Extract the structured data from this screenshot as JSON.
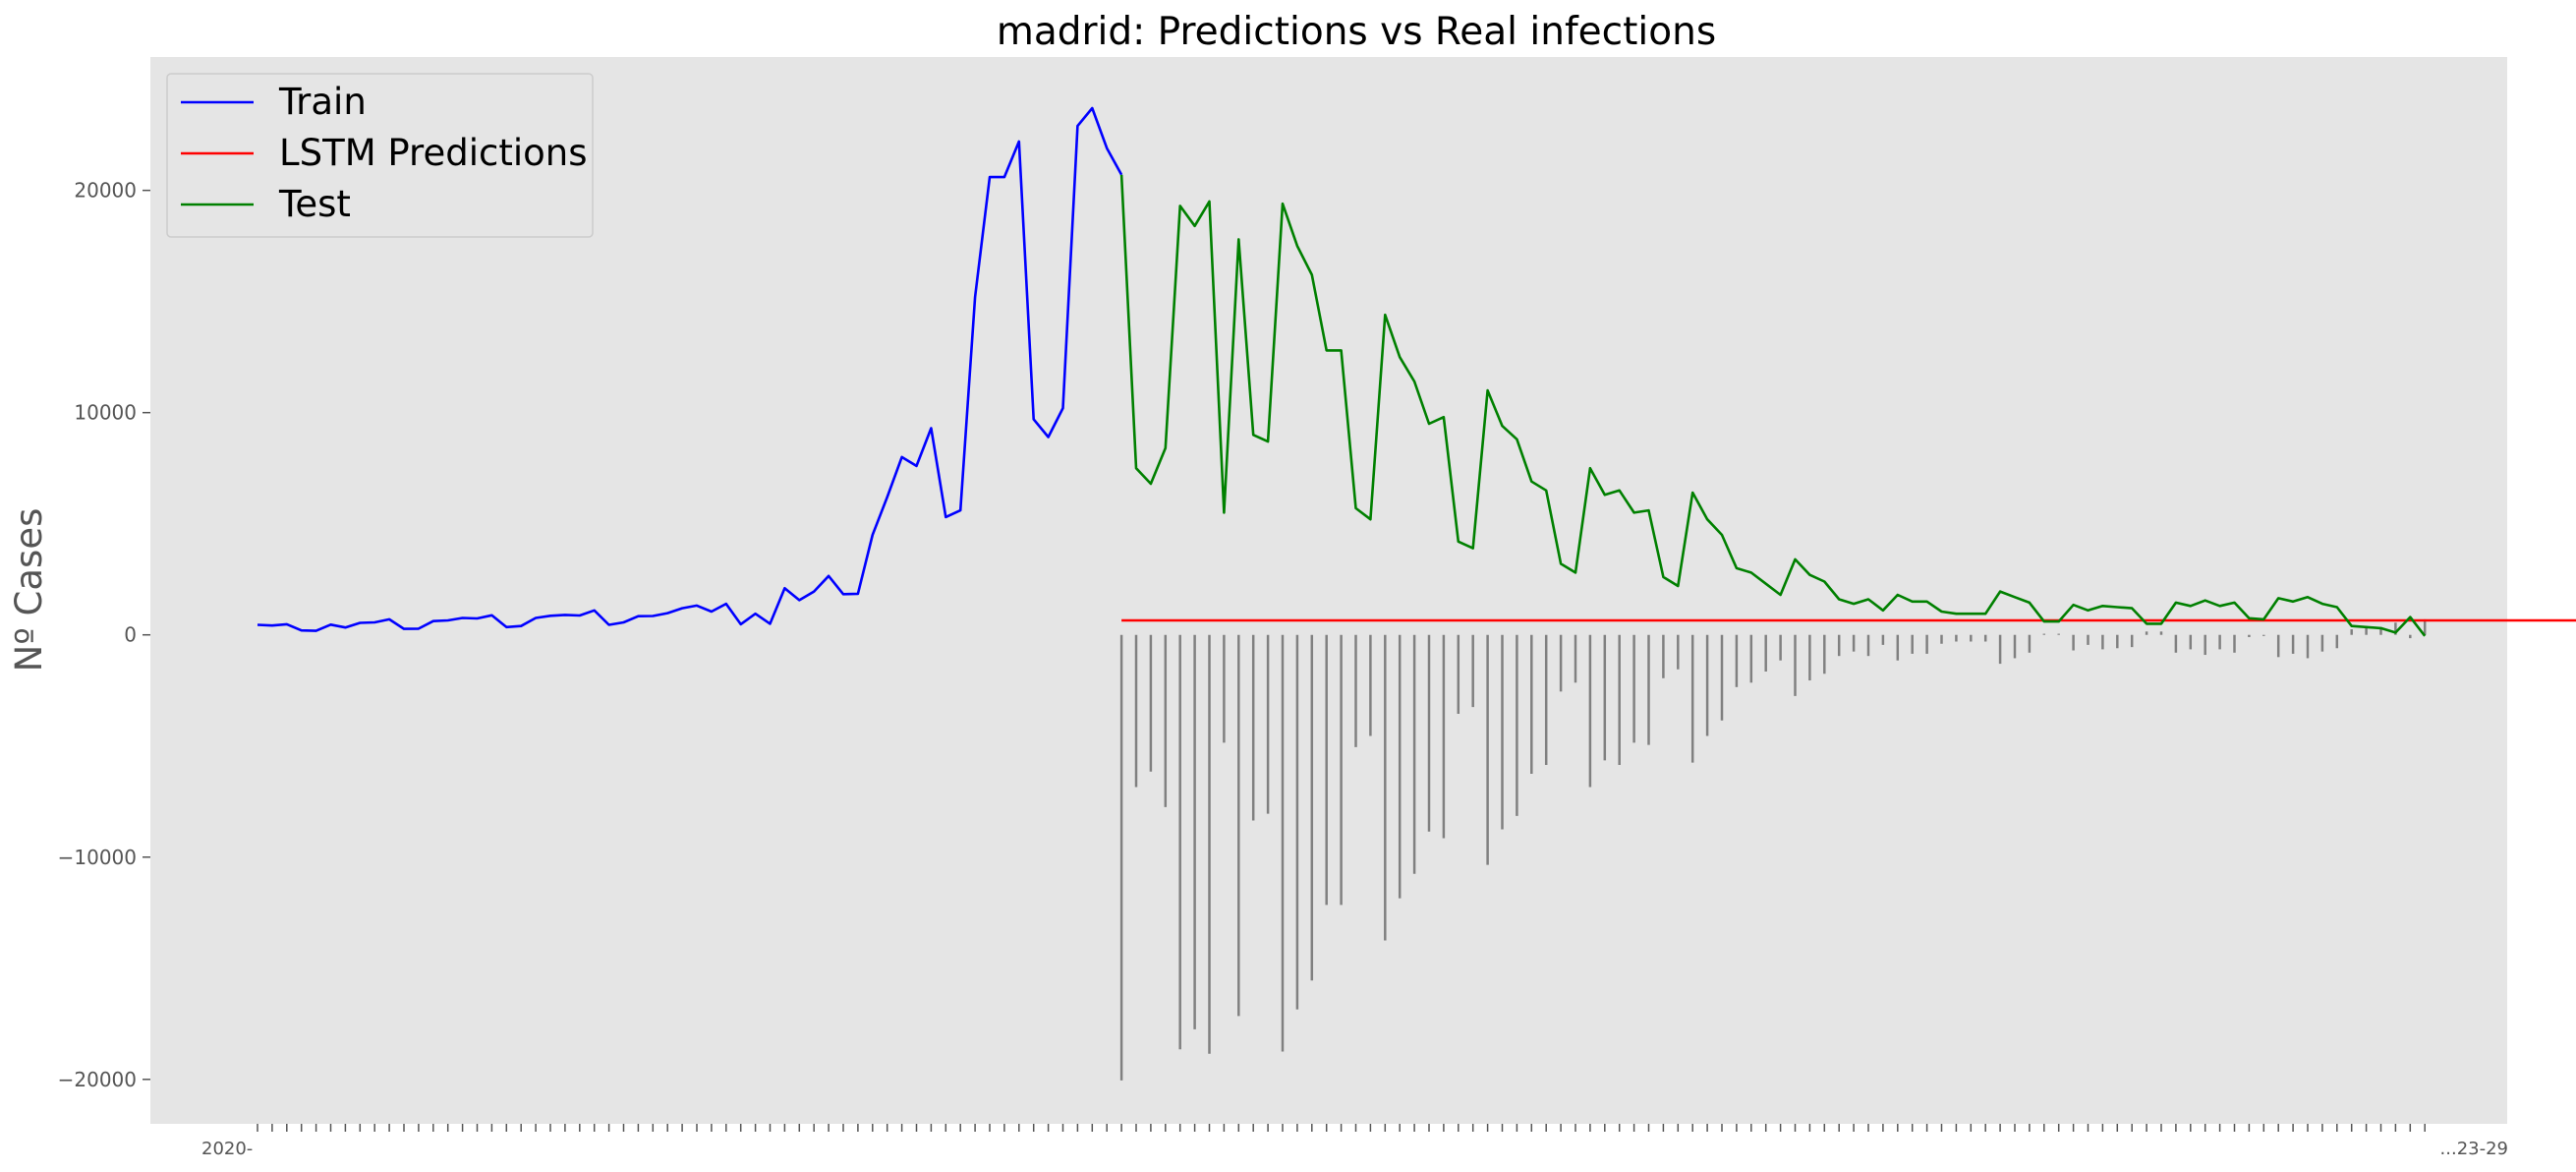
{
  "chart_data": {
    "type": "line",
    "title": "madrid: Predictions vs Real infections",
    "xlabel": "",
    "ylabel": "Nº Cases",
    "ylim": [
      -22000,
      26000
    ],
    "yticks": [
      -20000,
      -10000,
      0,
      10000,
      20000
    ],
    "grid": false,
    "legend_position": "top-left",
    "background": "#e5e5e5",
    "x_tick_labels": {
      "first": "2020-",
      "last": "...23-29"
    },
    "series": [
      {
        "name": "Train",
        "color": "#0000ff",
        "x_start": 0,
        "values": [
          450,
          420,
          480,
          200,
          180,
          460,
          330,
          540,
          560,
          700,
          270,
          280,
          620,
          650,
          760,
          740,
          880,
          350,
          400,
          760,
          860,
          900,
          870,
          1100,
          450,
          560,
          840,
          850,
          980,
          1200,
          1320,
          1050,
          1400,
          480,
          950,
          500,
          2100,
          1560,
          1950,
          2650,
          1830,
          1850,
          4500,
          6200,
          8000,
          7600,
          9300,
          5300,
          5600,
          15200,
          20600,
          20600,
          22200,
          9700,
          8900,
          10200,
          22900,
          23700,
          21900,
          20700
        ]
      },
      {
        "name": "LSTM Predictions",
        "color": "#ff0000",
        "x_start": 59,
        "values": [
          650,
          650,
          650,
          650,
          650,
          650,
          650,
          650,
          650,
          650,
          650,
          650,
          650,
          650,
          650,
          650,
          650,
          650,
          650,
          650,
          650,
          650,
          650,
          650,
          650,
          650,
          650,
          650,
          650,
          650,
          650,
          650,
          650,
          650,
          650,
          650,
          650,
          650,
          650,
          650,
          650,
          650,
          650,
          650,
          650,
          650,
          650,
          650,
          650,
          650,
          650,
          650,
          650,
          650,
          650,
          650,
          650,
          650,
          650,
          650,
          650,
          650,
          650,
          650,
          650,
          650,
          650,
          650,
          650,
          650,
          650,
          650,
          650,
          650,
          650,
          650,
          650,
          650,
          650,
          650,
          650,
          650,
          650,
          650,
          650,
          650,
          650,
          650,
          650,
          650,
          650,
          650,
          650,
          650,
          650,
          650,
          650,
          650,
          650,
          650,
          650,
          650,
          650,
          650,
          650,
          650,
          650,
          650,
          650,
          650,
          650,
          650,
          650,
          650,
          650,
          650,
          650,
          650,
          650,
          650,
          650,
          650,
          650,
          650,
          650,
          650,
          650,
          650,
          650,
          650,
          650,
          650,
          650,
          650,
          650,
          650,
          650,
          650,
          650,
          650,
          650,
          650,
          650,
          650,
          650,
          650,
          650,
          650,
          650
        ]
      },
      {
        "name": "Test",
        "color": "#008000",
        "x_start": 59,
        "values": [
          20700,
          7500,
          6800,
          8400,
          19300,
          18400,
          19500,
          5500,
          17800,
          9000,
          8700,
          19400,
          17500,
          16200,
          12800,
          12800,
          5700,
          5200,
          14400,
          12500,
          11400,
          9500,
          9800,
          4200,
          3900,
          11000,
          9400,
          8800,
          6900,
          6500,
          3200,
          2800,
          7500,
          6300,
          6500,
          5500,
          5600,
          2600,
          2200,
          6400,
          5200,
          4500,
          3000,
          2800,
          2300,
          1800,
          3400,
          2700,
          2400,
          1600,
          1400,
          1600,
          1100,
          1800,
          1500,
          1500,
          1050,
          950,
          950,
          950,
          1950,
          1700,
          1450,
          600,
          600,
          1350,
          1100,
          1300,
          1250,
          1200,
          500,
          500,
          1450,
          1300,
          1550,
          1300,
          1450,
          750,
          700,
          1650,
          1500,
          1700,
          1400,
          1250,
          400,
          350,
          300,
          100,
          800,
          -50
        ]
      },
      {
        "name": "",
        "type": "stem",
        "color": "#808080",
        "x_start": 59,
        "values": [
          -20050,
          -6850,
          -6150,
          -7750,
          -18650,
          -17750,
          -18850,
          -4850,
          -17150,
          -8350,
          -8050,
          -18750,
          -16850,
          -15550,
          -12150,
          -12150,
          -5050,
          -4550,
          -13750,
          -11850,
          -10750,
          -8850,
          -9150,
          -3550,
          -3250,
          -10350,
          -8750,
          -8150,
          -6250,
          -5850,
          -2550,
          -2150,
          -6850,
          -5650,
          -5850,
          -4850,
          -4950,
          -1950,
          -1550,
          -5750,
          -4550,
          -3850,
          -2350,
          -2150,
          -1650,
          -1150,
          -2750,
          -2050,
          -1750,
          -950,
          -750,
          -950,
          -450,
          -1150,
          -850,
          -850,
          -400,
          -300,
          -300,
          -300,
          -1300,
          -1050,
          -800,
          50,
          50,
          -700,
          -450,
          -650,
          -600,
          -550,
          150,
          150,
          -800,
          -650,
          -900,
          -650,
          -800,
          -100,
          -50,
          -1000,
          -850,
          -1050,
          -750,
          -600,
          250,
          300,
          350,
          550,
          -150,
          700
        ]
      }
    ]
  }
}
